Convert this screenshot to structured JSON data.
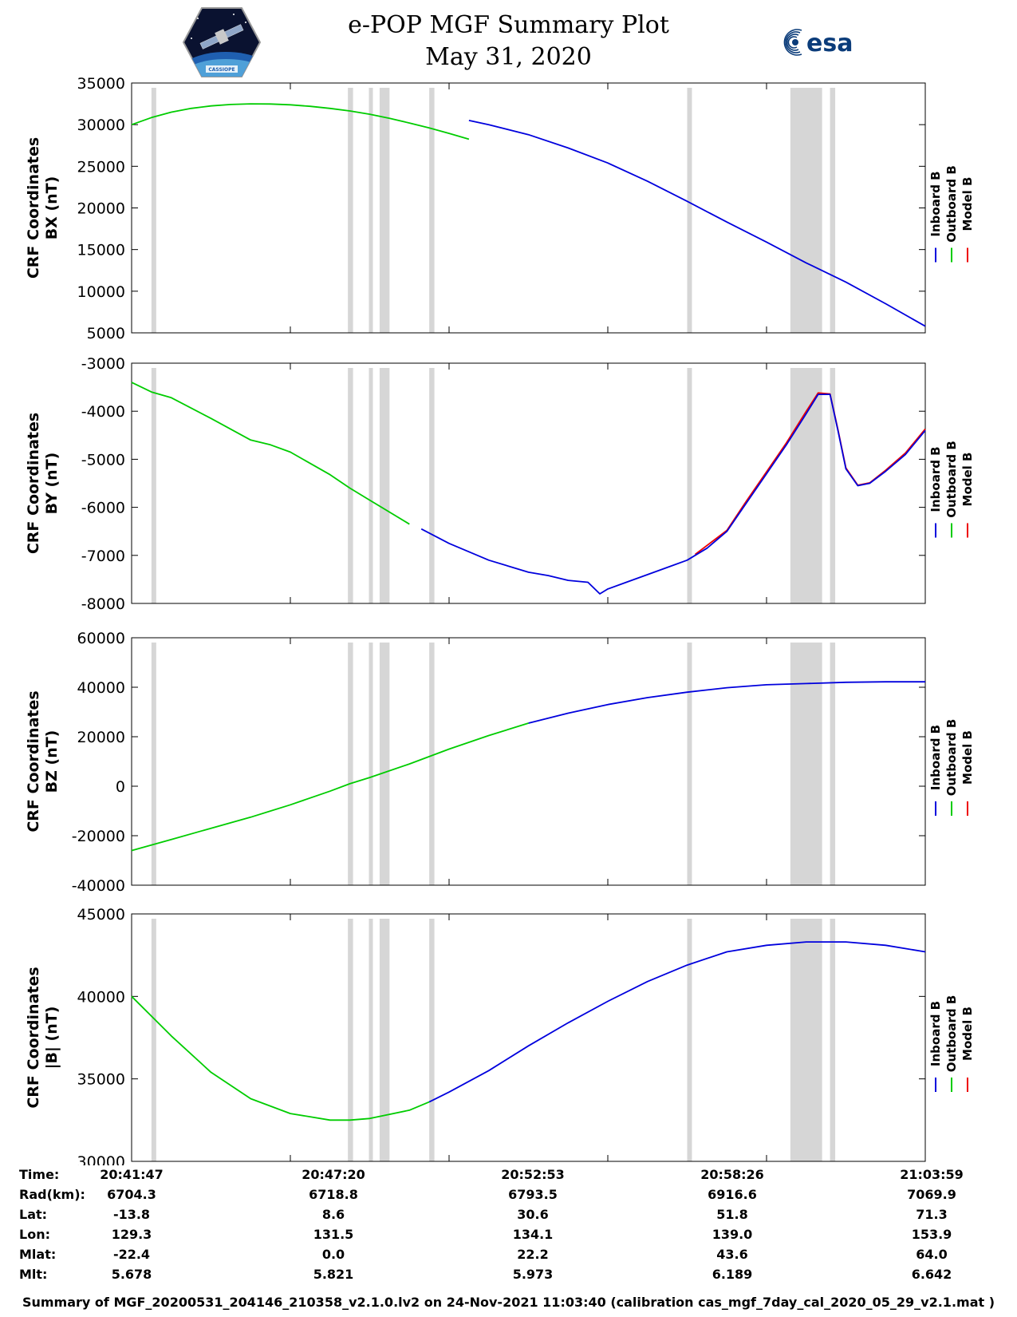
{
  "header": {
    "title_line1": "e-POP MGF Summary Plot",
    "title_line2": "May 31, 2020",
    "logo_left_icon": "cassiope-satellite-logo",
    "logo_left_text": "CASSIOPE",
    "logo_right_icon": "esa-logo",
    "logo_right_text": "esa"
  },
  "colors": {
    "inboard": "#0000dd",
    "outboard": "#00cc00",
    "model": "#ee0000",
    "gap": "#d6d6d6"
  },
  "chart_data": [
    {
      "type": "line",
      "ylabel_line1": "CRF Coordinates",
      "ylabel_line2": "BX (nT)",
      "ylim": [
        5000,
        35000
      ],
      "yticks": [
        "35000",
        "30000",
        "25000",
        "20000",
        "15000",
        "10000",
        "5000"
      ],
      "yticks_values": [
        35000,
        30000,
        25000,
        20000,
        15000,
        10000,
        5000
      ],
      "legend": [
        "Inboard B",
        "Outboard B",
        "Model B"
      ],
      "green_x": [
        0,
        0.5,
        1,
        1.5,
        2,
        2.5,
        3,
        3.5,
        4,
        4.5,
        5,
        5.5,
        6,
        6.5,
        7,
        7.5,
        8,
        8.5
      ],
      "green_y": [
        30000,
        30850,
        31500,
        31950,
        32250,
        32420,
        32500,
        32480,
        32380,
        32200,
        31950,
        31650,
        31250,
        30750,
        30200,
        29600,
        28950,
        28250
      ],
      "blue_x": [
        8.5,
        9,
        10,
        11,
        12,
        13,
        14,
        15,
        16,
        17,
        18,
        19,
        20
      ],
      "blue_y": [
        30500,
        30000,
        28800,
        27200,
        25400,
        23200,
        20800,
        18300,
        15900,
        13400,
        11100,
        8500,
        5800
      ]
    },
    {
      "type": "line",
      "ylabel_line1": "CRF Coordinates",
      "ylabel_line2": "BY (nT)",
      "ylim": [
        -8000,
        -3000
      ],
      "yticks": [
        "-3000",
        "-4000",
        "-5000",
        "-6000",
        "-7000",
        "-8000"
      ],
      "yticks_values": [
        -3000,
        -4000,
        -5000,
        -6000,
        -7000,
        -8000
      ],
      "legend": [
        "Inboard B",
        "Outboard B",
        "Model B"
      ],
      "green_x": [
        0,
        0.5,
        1,
        2,
        3,
        3.5,
        4,
        5,
        5.5,
        6,
        6.5,
        7
      ],
      "green_y": [
        -3400,
        -3600,
        -3720,
        -4150,
        -4600,
        -4700,
        -4850,
        -5320,
        -5600,
        -5850,
        -6100,
        -6350
      ],
      "blue_x": [
        7.3,
        8,
        9,
        10,
        10.5,
        11,
        11.5,
        11.8,
        12,
        12.5,
        13,
        13.5,
        14,
        14.5,
        15,
        15.5,
        16,
        16.5,
        17,
        17.3,
        17.6,
        17.8,
        18,
        18.3,
        18.6,
        19,
        19.5,
        20
      ],
      "blue_y": [
        -6450,
        -6750,
        -7100,
        -7350,
        -7420,
        -7520,
        -7560,
        -7800,
        -7700,
        -7550,
        -7400,
        -7250,
        -7100,
        -6850,
        -6500,
        -5900,
        -5300,
        -4700,
        -4050,
        -3650,
        -3650,
        -4400,
        -5200,
        -5550,
        -5500,
        -5250,
        -4900,
        -4400
      ],
      "red_x": [
        14.2,
        15,
        15.5,
        16,
        16.5,
        17,
        17.3,
        17.6,
        17.8,
        18,
        18.3,
        18.6,
        19,
        19.5,
        20
      ],
      "red_y": [
        -6980,
        -6480,
        -5860,
        -5260,
        -4660,
        -4000,
        -3620,
        -3640,
        -4380,
        -5180,
        -5540,
        -5490,
        -5230,
        -4870,
        -4370
      ]
    },
    {
      "type": "line",
      "ylabel_line1": "CRF Coordinates",
      "ylabel_line2": "BZ (nT)",
      "ylim": [
        -40000,
        60000
      ],
      "yticks": [
        "60000",
        "40000",
        "20000",
        "0",
        "-20000",
        "-40000"
      ],
      "yticks_values": [
        60000,
        40000,
        20000,
        0,
        -20000,
        -40000
      ],
      "legend": [
        "Inboard B",
        "Outboard B",
        "Model B"
      ],
      "green_x": [
        0,
        1,
        2,
        3,
        4,
        5,
        5.5,
        6,
        7,
        8,
        9,
        10
      ],
      "green_y": [
        -26000,
        -21500,
        -17000,
        -12500,
        -7500,
        -2000,
        1000,
        3500,
        9000,
        15000,
        20500,
        25500
      ],
      "blue_x": [
        10,
        11,
        12,
        13,
        14,
        15,
        16,
        17,
        18,
        19,
        20
      ],
      "blue_y": [
        25500,
        29500,
        33000,
        35800,
        38000,
        39800,
        41000,
        41500,
        42000,
        42200,
        42200
      ]
    },
    {
      "type": "line",
      "ylabel_line1": "CRF Coordinates",
      "ylabel_line2": "|B| (nT)",
      "ylim": [
        30000,
        45000
      ],
      "yticks": [
        "45000",
        "40000",
        "35000",
        "30000"
      ],
      "yticks_values": [
        45000,
        40000,
        35000,
        30000
      ],
      "legend": [
        "Inboard B",
        "Outboard B",
        "Model B"
      ],
      "green_x": [
        0,
        1,
        2,
        3,
        4,
        5,
        5.5,
        6,
        7,
        7.5
      ],
      "green_y": [
        40000,
        37600,
        35400,
        33800,
        32900,
        32500,
        32500,
        32600,
        33100,
        33600
      ],
      "blue_x": [
        7.5,
        8,
        9,
        10,
        11,
        12,
        13,
        14,
        15,
        16,
        17,
        18,
        19,
        20
      ],
      "blue_y": [
        33600,
        34200,
        35500,
        37000,
        38400,
        39700,
        40900,
        41900,
        42700,
        43100,
        43300,
        43300,
        43100,
        42700
      ]
    }
  ],
  "gaps_x": [
    [
      0.5,
      0.62
    ],
    [
      5.45,
      5.58
    ],
    [
      5.98,
      6.08
    ],
    [
      6.25,
      6.5
    ],
    [
      7.5,
      7.63
    ],
    [
      14.0,
      14.12
    ],
    [
      16.6,
      17.4
    ],
    [
      17.6,
      17.73
    ]
  ],
  "info_table": {
    "labels": [
      "Time:",
      "Rad(km):",
      "Lat:",
      "Lon:",
      "Mlat:",
      "Mlt:"
    ],
    "columns": [
      [
        "20:41:47",
        "6704.3",
        "-13.8",
        "129.3",
        "-22.4",
        "5.678"
      ],
      [
        "20:47:20",
        "6718.8",
        "8.6",
        "131.5",
        "0.0",
        "5.821"
      ],
      [
        "20:52:53",
        "6793.5",
        "30.6",
        "134.1",
        "22.2",
        "5.973"
      ],
      [
        "20:58:26",
        "6916.6",
        "51.8",
        "139.0",
        "43.6",
        "6.189"
      ],
      [
        "21:03:59",
        "7069.9",
        "71.3",
        "153.9",
        "64.0",
        "6.642"
      ]
    ]
  },
  "footer": "Summary of MGF_20200531_204146_210358_v2.1.0.lv2 on 24-Nov-2021 11:03:40 (calibration cas_mgf_7day_cal_2020_05_29_v2.1.mat )"
}
